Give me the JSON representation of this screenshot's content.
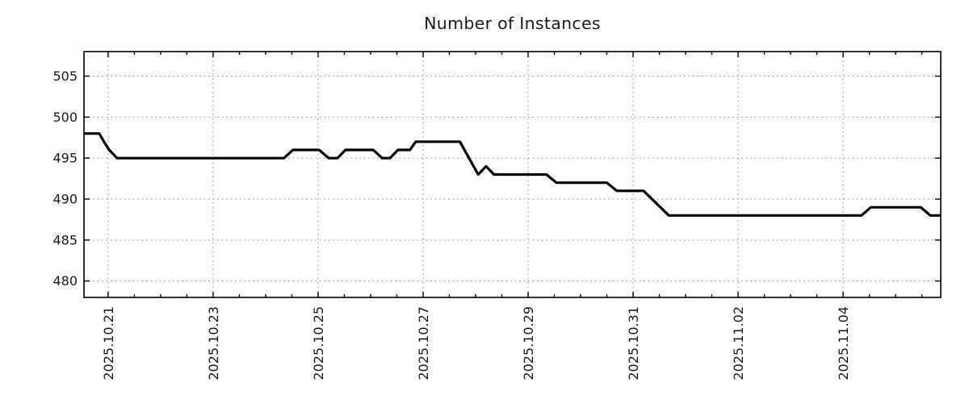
{
  "chart_data": {
    "type": "line",
    "title": "Number of Instances",
    "grid": true,
    "legend": "none",
    "x_axis": {
      "day_zero_label": "2025.10.21",
      "tick_labels": [
        "2025.10.21",
        "2025.10.23",
        "2025.10.25",
        "2025.10.27",
        "2025.10.29",
        "2025.10.31",
        "2025.11.02",
        "2025.11.04"
      ],
      "tick_days": [
        0,
        2,
        4,
        6,
        8,
        10,
        12,
        14
      ],
      "minor_tick_every_days": 0.5,
      "range_days": [
        -0.46,
        15.86
      ]
    },
    "y_axis": {
      "tick_values": [
        480,
        485,
        490,
        495,
        500,
        505
      ],
      "range": [
        478,
        508
      ]
    },
    "series": [
      {
        "name": "Number of Instances",
        "color": "#000000",
        "points_day_value": [
          [
            -0.46,
            498
          ],
          [
            -0.17,
            498
          ],
          [
            -0.08,
            497
          ],
          [
            0.02,
            496
          ],
          [
            0.17,
            495
          ],
          [
            3.35,
            495
          ],
          [
            3.52,
            496
          ],
          [
            4.02,
            496
          ],
          [
            4.2,
            495
          ],
          [
            4.37,
            495
          ],
          [
            4.52,
            496
          ],
          [
            5.05,
            496
          ],
          [
            5.22,
            495
          ],
          [
            5.37,
            495
          ],
          [
            5.52,
            496
          ],
          [
            5.75,
            496
          ],
          [
            5.86,
            497
          ],
          [
            6.7,
            497
          ],
          [
            7.05,
            493
          ],
          [
            7.2,
            494
          ],
          [
            7.35,
            493
          ],
          [
            8.35,
            493
          ],
          [
            8.54,
            492
          ],
          [
            9.5,
            492
          ],
          [
            9.69,
            491
          ],
          [
            10.2,
            491
          ],
          [
            10.68,
            488
          ],
          [
            14.35,
            488
          ],
          [
            14.53,
            489
          ],
          [
            15.48,
            489
          ],
          [
            15.66,
            488
          ],
          [
            15.86,
            488
          ]
        ]
      }
    ]
  },
  "colors": {
    "line": "#000000",
    "grid": "#9e9e9e",
    "axis": "#000000",
    "text": "#1a1a1a",
    "background": "#ffffff"
  }
}
